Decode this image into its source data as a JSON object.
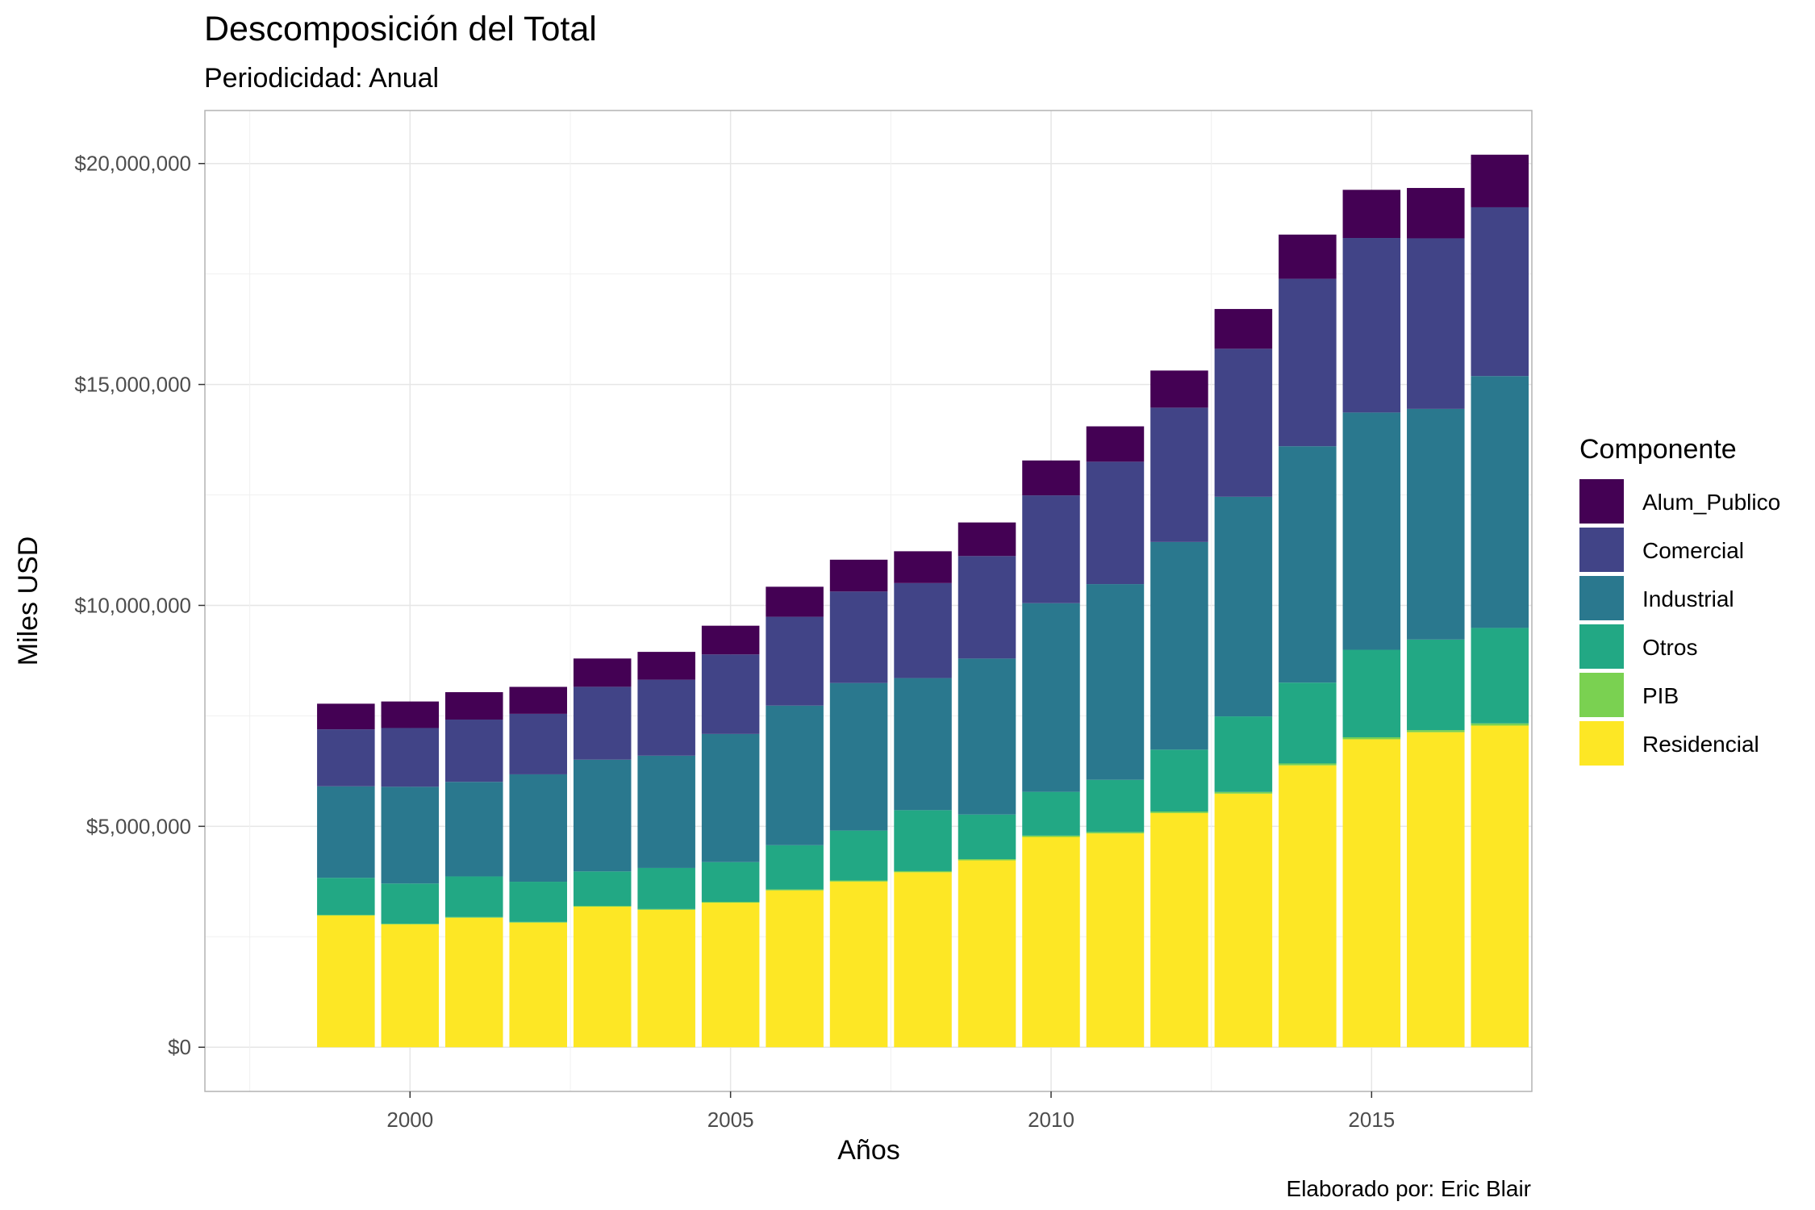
{
  "chart_data": {
    "type": "bar",
    "stacked": true,
    "title": "Descomposición del Total",
    "subtitle": "Periodicidad: Anual",
    "xlabel": "Años",
    "ylabel": "Miles USD",
    "caption": "Elaborado por: Eric Blair",
    "x": [
      1999,
      2000,
      2001,
      2002,
      2003,
      2004,
      2005,
      2006,
      2007,
      2008,
      2009,
      2010,
      2011,
      2012,
      2013,
      2014,
      2015,
      2016,
      2017
    ],
    "x_ticks": [
      2000,
      2005,
      2010,
      2015
    ],
    "y_ticks": [
      0,
      5000000,
      10000000,
      15000000,
      20000000
    ],
    "y_tick_labels": [
      "$0",
      "$5,000,000",
      "$10,000,000",
      "$15,000,000",
      "$20,000,000"
    ],
    "xlim": [
      1996.8,
      2017.5
    ],
    "ylim": [
      -1000000,
      21200000
    ],
    "grid": true,
    "legend_title": "Componente",
    "legend_position": "right",
    "series": [
      {
        "name": "Residencial",
        "color": "#FDE725",
        "values": [
          2980000,
          2780000,
          2930000,
          2820000,
          3180000,
          3110000,
          3270000,
          3550000,
          3750000,
          3960000,
          4230000,
          4760000,
          4840000,
          5300000,
          5740000,
          6380000,
          6970000,
          7130000,
          7280000
        ]
      },
      {
        "name": "PIB",
        "color": "#7AD151",
        "values": [
          15000,
          15000,
          16000,
          16000,
          18000,
          18000,
          20000,
          22000,
          24000,
          25000,
          27000,
          30000,
          32000,
          35000,
          38000,
          42000,
          45000,
          47000,
          50000
        ]
      },
      {
        "name": "Otros",
        "color": "#22A884",
        "values": [
          840000,
          910000,
          920000,
          910000,
          780000,
          930000,
          900000,
          1000000,
          1130000,
          1380000,
          1010000,
          990000,
          1180000,
          1400000,
          1710000,
          1830000,
          1980000,
          2050000,
          2160000
        ]
      },
      {
        "name": "Industrial",
        "color": "#2A788E",
        "values": [
          2070000,
          2190000,
          2140000,
          2430000,
          2530000,
          2540000,
          2900000,
          3160000,
          3340000,
          2990000,
          3530000,
          4270000,
          4430000,
          4700000,
          4970000,
          5350000,
          5370000,
          5220000,
          5700000
        ]
      },
      {
        "name": "Comercial",
        "color": "#414487",
        "values": [
          1290000,
          1330000,
          1410000,
          1370000,
          1650000,
          1720000,
          1800000,
          2010000,
          2070000,
          2150000,
          2320000,
          2440000,
          2770000,
          3040000,
          3350000,
          3790000,
          3950000,
          3860000,
          3820000
        ]
      },
      {
        "name": "Alum_Publico",
        "color": "#440154",
        "values": [
          580000,
          600000,
          620000,
          610000,
          640000,
          630000,
          650000,
          680000,
          720000,
          720000,
          760000,
          790000,
          800000,
          840000,
          900000,
          1000000,
          1090000,
          1140000,
          1190000
        ]
      }
    ],
    "legend_order": [
      "Alum_Publico",
      "Comercial",
      "Industrial",
      "Otros",
      "PIB",
      "Residencial"
    ]
  }
}
